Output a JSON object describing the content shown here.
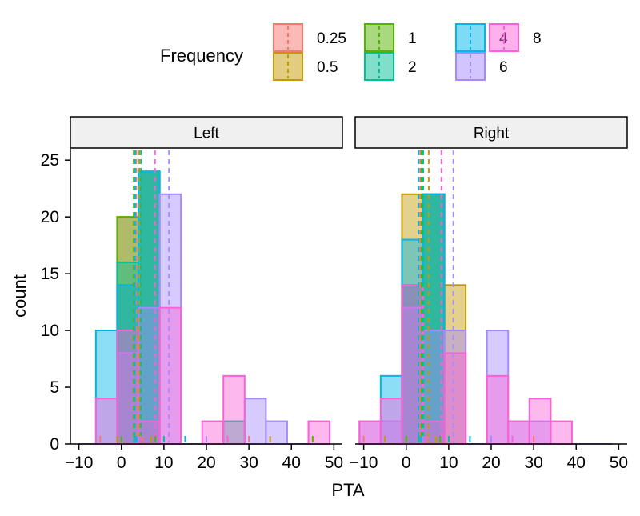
{
  "chart_data": {
    "type": "histogram",
    "xlabel": "PTA",
    "ylabel": "count",
    "legend": {
      "title": "Frequency",
      "placement": "top",
      "entries": [
        {
          "label": "0.25",
          "color": "#F8766D"
        },
        {
          "label": "0.5",
          "color": "#C49A00"
        },
        {
          "label": "1",
          "color": "#53B400"
        },
        {
          "label": "2",
          "color": "#00C094"
        },
        {
          "label": "4",
          "color": "#00B6EB"
        },
        {
          "label": "6",
          "color": "#A58AFF"
        },
        {
          "label": "8",
          "color": "#FB61D7"
        }
      ]
    },
    "xlim": [
      -12,
      52
    ],
    "ylim": [
      0,
      26
    ],
    "x_ticks": [
      -10,
      0,
      10,
      20,
      30,
      40,
      50
    ],
    "y_ticks": [
      0,
      5,
      10,
      15,
      20,
      25
    ],
    "bin_width": 5,
    "bin_starts": [
      -10,
      -5,
      0,
      5,
      10,
      15,
      20,
      25,
      30,
      35,
      40,
      45
    ],
    "panels": [
      {
        "strip": "Left",
        "series": [
          {
            "name": "0.25",
            "counts": [
              0,
              0,
              20,
              24,
              0,
              0,
              0,
              0,
              0,
              0,
              0,
              0
            ],
            "mean": 3.5
          },
          {
            "name": "0.5",
            "counts": [
              0,
              0,
              14,
              24,
              0,
              0,
              0,
              0,
              0,
              0,
              0,
              0
            ],
            "mean": 4.2
          },
          {
            "name": "1",
            "counts": [
              0,
              0,
              20,
              24,
              0,
              0,
              0,
              0,
              0,
              0,
              0,
              0
            ],
            "mean": 2.9
          },
          {
            "name": "2",
            "counts": [
              0,
              0,
              16,
              24,
              0,
              0,
              0,
              2,
              0,
              0,
              0,
              0
            ],
            "mean": 4.6
          },
          {
            "name": "4",
            "counts": [
              0,
              10,
              14,
              24,
              0,
              0,
              0,
              0,
              0,
              0,
              0,
              0
            ],
            "mean": 3.2
          },
          {
            "name": "6",
            "counts": [
              0,
              0,
              8,
              12,
              22,
              0,
              0,
              0,
              4,
              2,
              0,
              0
            ],
            "mean": 11.2
          },
          {
            "name": "8",
            "counts": [
              0,
              4,
              10,
              2,
              12,
              0,
              2,
              6,
              0,
              0,
              0,
              2
            ],
            "mean": 7.9
          }
        ],
        "rug": [
          -5,
          -1,
          0,
          3,
          3.5,
          4,
          4.5,
          5,
          7,
          8,
          10,
          15,
          20,
          25,
          30,
          35,
          45
        ]
      },
      {
        "strip": "Right",
        "series": [
          {
            "name": "0.25",
            "counts": [
              0,
              0,
              14,
              22,
              0,
              0,
              0,
              0,
              0,
              0,
              0,
              0
            ],
            "mean": 3.3
          },
          {
            "name": "0.5",
            "counts": [
              0,
              0,
              22,
              22,
              14,
              0,
              0,
              0,
              0,
              0,
              0,
              0
            ],
            "mean": 5.3
          },
          {
            "name": "1",
            "counts": [
              0,
              0,
              14,
              22,
              0,
              0,
              0,
              0,
              0,
              0,
              0,
              0
            ],
            "mean": 3.6
          },
          {
            "name": "2",
            "counts": [
              0,
              0,
              14,
              22,
              0,
              0,
              0,
              0,
              0,
              0,
              0,
              0
            ],
            "mean": 4.0
          },
          {
            "name": "4",
            "counts": [
              0,
              6,
              18,
              22,
              0,
              0,
              0,
              0,
              0,
              0,
              0,
              0
            ],
            "mean": 2.9
          },
          {
            "name": "6",
            "counts": [
              2,
              2,
              12,
              10,
              10,
              0,
              10,
              2,
              2,
              0,
              0,
              0
            ],
            "mean": 11.1
          },
          {
            "name": "8",
            "counts": [
              2,
              4,
              14,
              2,
              8,
              0,
              6,
              2,
              4,
              2,
              0,
              0
            ],
            "mean": 8.3
          }
        ],
        "rug": [
          -10,
          -5,
          0,
          3,
          3.5,
          4,
          4.5,
          5,
          7,
          8,
          10,
          15,
          20,
          25,
          30
        ]
      }
    ]
  }
}
